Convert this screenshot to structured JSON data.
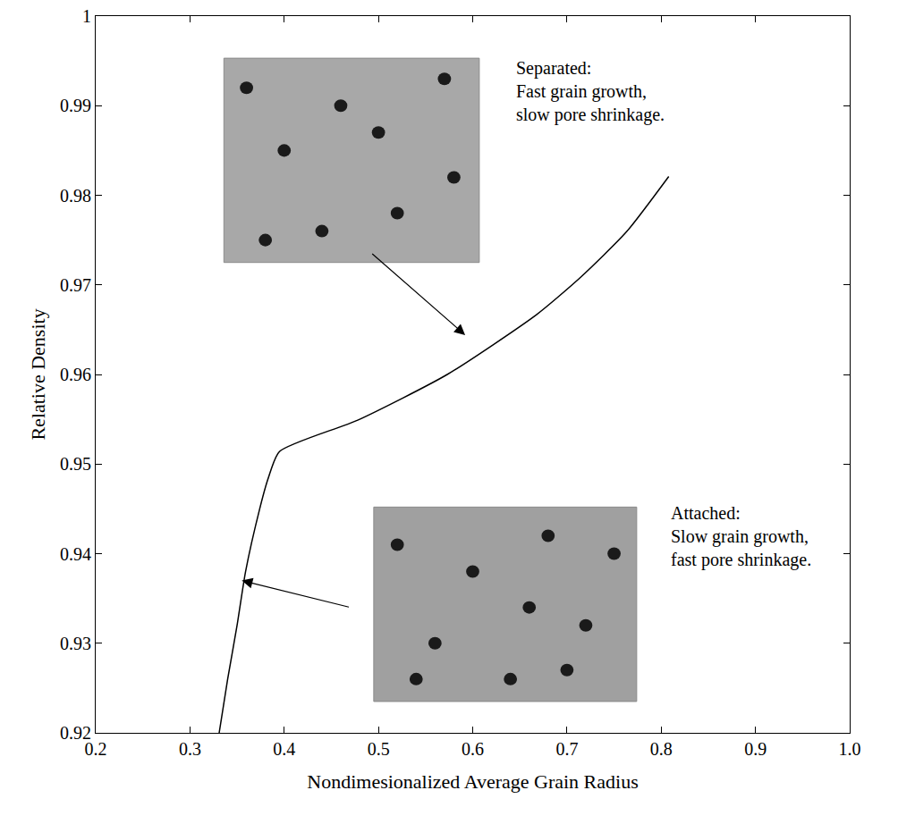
{
  "chart_data": {
    "type": "line",
    "x_label": "Nondimesionalized Average Grain Radius",
    "y_label": "Relative Density",
    "x": [
      0.331,
      0.34,
      0.35,
      0.359,
      0.374,
      0.383,
      0.395,
      0.478,
      0.573,
      0.668,
      0.715,
      0.763,
      0.808
    ],
    "values": [
      0.92,
      0.926,
      0.932,
      0.938,
      0.945,
      0.9484,
      0.9514,
      0.9549,
      0.96,
      0.9667,
      0.9709,
      0.9759,
      0.9821
    ],
    "color": "#000000",
    "line_style": "solid",
    "xlim": [
      0.2,
      1
    ],
    "ylim": [
      0.92,
      1
    ],
    "xticks": [
      0.2,
      0.3,
      0.4,
      0.5,
      0.6,
      0.7,
      0.8,
      0.9,
      {
        "value": 1,
        "label": "1.0"
      }
    ],
    "yticks": [
      0.92,
      0.93,
      0.94,
      0.95,
      0.96,
      0.97,
      0.98,
      0.99,
      1
    ],
    "grid": false,
    "annotations": [
      {
        "lines": [
          "Separated:",
          "Fast grain growth,",
          "slow pore shrinkage."
        ]
      },
      {
        "lines": [
          "Attached:",
          "Slow grain growth,",
          "fast pore shrinkage."
        ]
      }
    ]
  }
}
